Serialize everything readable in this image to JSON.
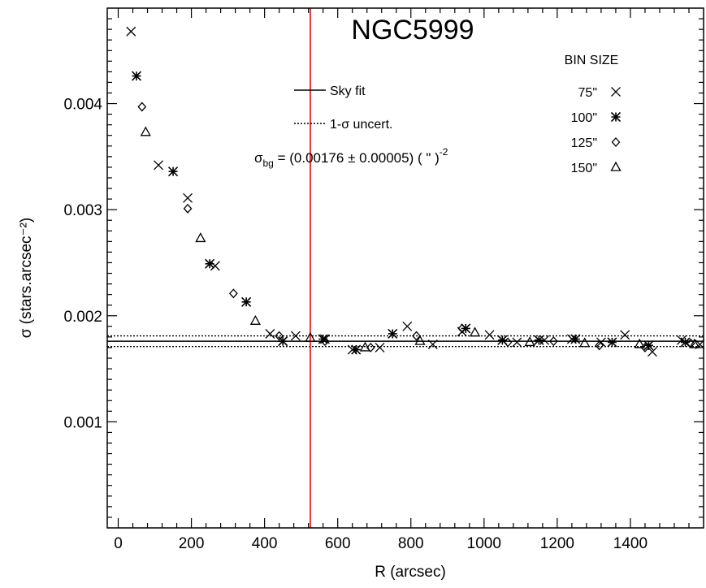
{
  "chart_data": {
    "type": "scatter",
    "title": "NGC5999",
    "xlabel": "R (arcsec)",
    "ylabel": "σ (stars.arcsec⁻²)",
    "xlim": [
      -30,
      1600
    ],
    "ylim": [
      0,
      0.0049
    ],
    "x_ticks": [
      0,
      200,
      400,
      600,
      800,
      1000,
      1200,
      1400
    ],
    "y_ticks": [
      0.001,
      0.002,
      0.003,
      0.004
    ],
    "x_tick_labels": [
      "0",
      "200",
      "400",
      "600",
      "800",
      "1000",
      "1200",
      "1400"
    ],
    "y_tick_labels": [
      "0.001",
      "0.002",
      "0.003",
      "0.004"
    ],
    "sky_fit": 0.00176,
    "sky_uncertainty": 5e-05,
    "vertical_line_x": 525,
    "vertical_line_color": "#e8232a",
    "line_legend": [
      {
        "label": "Sky fit",
        "style": "solid"
      },
      {
        "label": "1-σ uncert.",
        "style": "dotted"
      }
    ],
    "formula": {
      "sigma": "σ",
      "sub": "bg",
      "eq": " = (0.00176 ± 0.00005) ( \" )",
      "sup": "-2"
    },
    "legend_title": "BIN SIZE",
    "series": [
      {
        "name": "75\"",
        "marker": "x",
        "points": [
          [
            35,
            0.00468
          ],
          [
            110,
            0.00342
          ],
          [
            190,
            0.00311
          ],
          [
            265,
            0.00247
          ],
          [
            415,
            0.00183
          ],
          [
            485,
            0.00181
          ],
          [
            565,
            0.00178
          ],
          [
            640,
            0.00168
          ],
          [
            715,
            0.0017
          ],
          [
            790,
            0.0019
          ],
          [
            860,
            0.00173
          ],
          [
            940,
            0.00185
          ],
          [
            1015,
            0.00182
          ],
          [
            1090,
            0.00175
          ],
          [
            1165,
            0.00177
          ],
          [
            1240,
            0.00178
          ],
          [
            1320,
            0.00175
          ],
          [
            1385,
            0.00182
          ],
          [
            1460,
            0.00166
          ],
          [
            1540,
            0.00177
          ],
          [
            1590,
            0.00173
          ]
        ]
      },
      {
        "name": "100\"",
        "marker": "asterisk",
        "points": [
          [
            50,
            0.00426
          ],
          [
            150,
            0.00336
          ],
          [
            250,
            0.00249
          ],
          [
            350,
            0.00213
          ],
          [
            450,
            0.00176
          ],
          [
            560,
            0.00178
          ],
          [
            650,
            0.00168
          ],
          [
            750,
            0.00183
          ],
          [
            950,
            0.00188
          ],
          [
            1050,
            0.00177
          ],
          [
            1150,
            0.00177
          ],
          [
            1250,
            0.00178
          ],
          [
            1350,
            0.00175
          ],
          [
            1450,
            0.00172
          ],
          [
            1550,
            0.00175
          ]
        ]
      },
      {
        "name": "125\"",
        "marker": "diamond",
        "points": [
          [
            65,
            0.00397
          ],
          [
            190,
            0.00301
          ],
          [
            315,
            0.00221
          ],
          [
            440,
            0.00181
          ],
          [
            565,
            0.00176
          ],
          [
            690,
            0.0017
          ],
          [
            815,
            0.00181
          ],
          [
            940,
            0.00188
          ],
          [
            1065,
            0.00175
          ],
          [
            1190,
            0.00176
          ],
          [
            1315,
            0.00172
          ],
          [
            1440,
            0.0017
          ],
          [
            1565,
            0.00174
          ]
        ]
      },
      {
        "name": "150\"",
        "marker": "triangle",
        "points": [
          [
            75,
            0.00373
          ],
          [
            225,
            0.00273
          ],
          [
            375,
            0.00195
          ],
          [
            525,
            0.00179
          ],
          [
            675,
            0.0017
          ],
          [
            825,
            0.00176
          ],
          [
            975,
            0.00184
          ],
          [
            1125,
            0.00175
          ],
          [
            1275,
            0.00174
          ],
          [
            1425,
            0.00173
          ],
          [
            1575,
            0.00173
          ]
        ]
      }
    ]
  }
}
